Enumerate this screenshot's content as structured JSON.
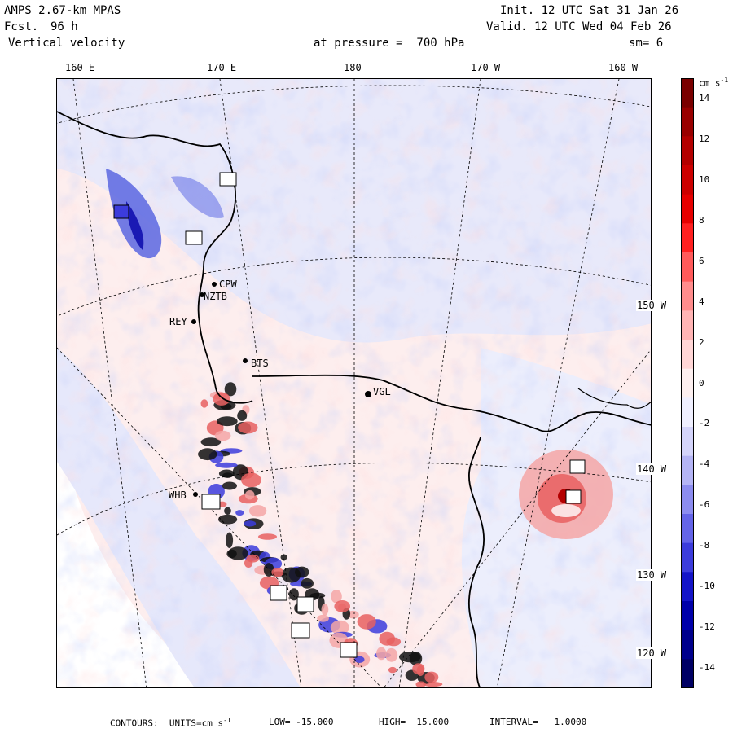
{
  "header": {
    "model": "AMPS 2.67-km MPAS",
    "forecast_label": "Fcst.",
    "forecast_hours": "96 h",
    "field_name": "Vertical velocity",
    "init": "Init. 12 UTC Sat 31 Jan 26",
    "valid": "Valid. 12 UTC Wed 04 Feb 26",
    "pressure_label": "at pressure =  700 hPa",
    "smoothing": "sm= 6"
  },
  "longitude_labels": [
    "160 E",
    "170 E",
    "180",
    "170 W",
    "160 W"
  ],
  "latitude_labels": [
    "150 W",
    "140 W",
    "130 W",
    "120 W"
  ],
  "stations": [
    "CPW",
    "NZTB",
    "REY",
    "BTS",
    "VGL",
    "WHB"
  ],
  "colorbar": {
    "units": "cm s",
    "units_exp": "-1",
    "levels": [
      14,
      12,
      10,
      8,
      6,
      4,
      2,
      0,
      -2,
      -4,
      -6,
      -8,
      -10,
      -12,
      -14
    ],
    "level_labels": [
      "14",
      "12",
      "10",
      "8",
      "6",
      "4",
      "2",
      "0",
      "-2",
      "-4",
      "-6",
      "-8",
      "-10",
      "-12",
      "-14"
    ],
    "colors": [
      "#7a0000",
      "#990000",
      "#b30000",
      "#cc0000",
      "#e60000",
      "#ff2020",
      "#ff5a5a",
      "#ff8c8c",
      "#ffb4b4",
      "#ffd6d6",
      "#fdf0f0",
      "#f0f0ff",
      "#d4d4fa",
      "#b4b4f5",
      "#8c8cf0",
      "#6464e8",
      "#3c3cdc",
      "#1414c8",
      "#0000aa",
      "#00008c",
      "#000064"
    ]
  },
  "footer": {
    "prefix": "CONTOURS:  UNITS=cm s",
    "units_exp": "-1",
    "low": "LOW= -15.000",
    "high": "HIGH=  15.000",
    "interval": "INTERVAL=   1.0000"
  }
}
